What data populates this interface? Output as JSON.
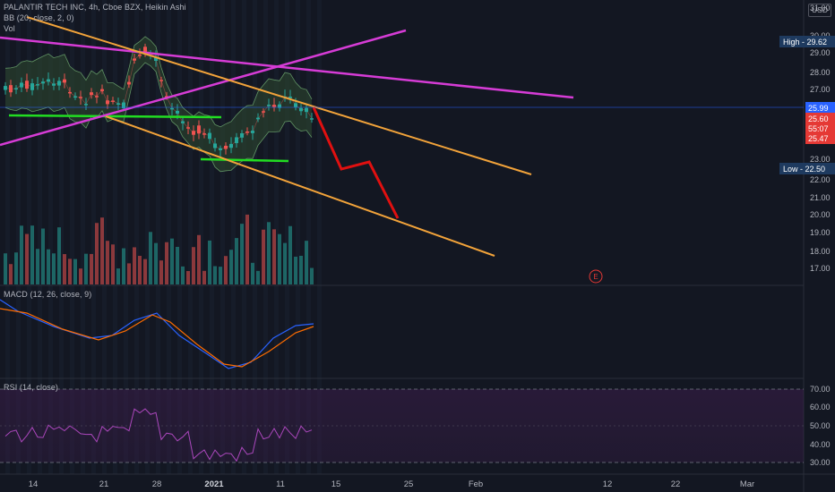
{
  "header": {
    "symbol_line": "PALANTIR TECH INC, 4h, Cboe BZX, Heikin Ashi",
    "bb_label": "BB (20, close, 2, 0)",
    "vol_label": "Vol",
    "currency": "USD"
  },
  "macd_panel": {
    "label": "MACD (12, 26, close, 9)"
  },
  "rsi_panel": {
    "label": "RSI (14, close)",
    "ticks": [
      "70.00",
      "60.00",
      "50.00",
      "40.00",
      "30.00"
    ]
  },
  "price_axis": {
    "ticks": [
      "31.00",
      "30.00",
      "29.00",
      "28.00",
      "27.00",
      "26.00",
      "24.00",
      "23.00",
      "22.00",
      "21.00",
      "20.00",
      "19.00",
      "18.00",
      "17.00"
    ]
  },
  "price_tags": {
    "high": "High - 29.62",
    "low": "Low - 22.50",
    "last": "25.99",
    "close": "25.60",
    "countdown": "55:07",
    "other": "25.47"
  },
  "time_axis": {
    "labels": [
      "14",
      "21",
      "28",
      "2021",
      "11",
      "15",
      "25",
      "Feb",
      "12",
      "22",
      "Mar"
    ]
  },
  "event_marker": "E",
  "colors": {
    "background": "#131722",
    "up_candle": "#26a69a",
    "down_candle": "#ef5350",
    "bollinger": "#7ec07e",
    "green_line": "#22dd22",
    "magenta_line": "#d63cd6",
    "orange_line": "#f2a33a",
    "red_projection": "#e01010",
    "macd": "#2962ff",
    "signal": "#ff6d00",
    "rsi": "#9c27b0",
    "last_price_line": "#2962ff"
  },
  "icons": {
    "event": "earnings-event-icon"
  }
}
